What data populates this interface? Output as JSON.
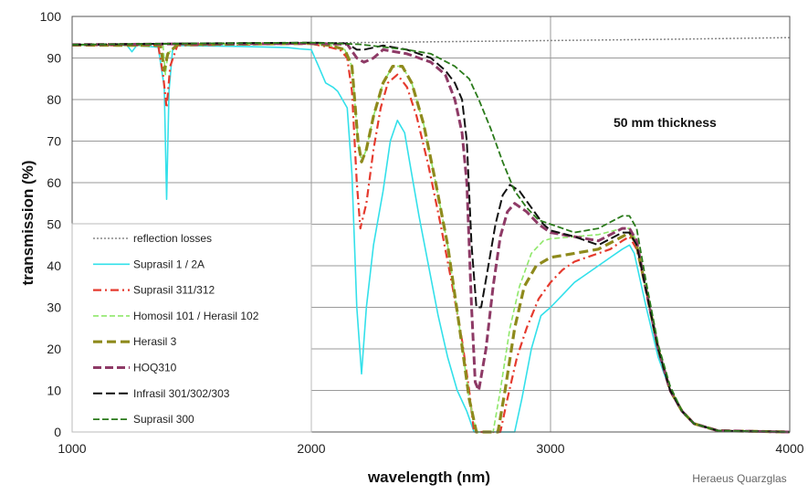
{
  "chart_data": {
    "type": "line",
    "title": "",
    "annotation": "50 mm thickness",
    "credit": "Heraeus Quarzglas",
    "xlabel": "wavelength (nm)",
    "ylabel": "transmission (%)",
    "xlim": [
      1000,
      4000
    ],
    "ylim": [
      0,
      100
    ],
    "xticks": [
      1000,
      2000,
      3000,
      4000
    ],
    "yticks": [
      0,
      10,
      20,
      30,
      40,
      50,
      60,
      70,
      80,
      90,
      100
    ],
    "legend_position": "lower-left",
    "series": [
      {
        "name": "reflection losses",
        "color": "#888888",
        "dash": "2,2",
        "width": 1.5,
        "points": [
          [
            1000,
            93.2
          ],
          [
            1500,
            93.4
          ],
          [
            2000,
            93.6
          ],
          [
            2500,
            93.9
          ],
          [
            3000,
            94.2
          ],
          [
            3500,
            94.5
          ],
          [
            4000,
            94.9
          ]
        ]
      },
      {
        "name": "Suprasil 1 / 2A",
        "color": "#33e0ea",
        "dash": "",
        "width": 1.6,
        "points": [
          [
            1000,
            93.1
          ],
          [
            1230,
            93
          ],
          [
            1250,
            91.5
          ],
          [
            1270,
            93
          ],
          [
            1360,
            92.6
          ],
          [
            1385,
            83
          ],
          [
            1395,
            56
          ],
          [
            1405,
            82
          ],
          [
            1420,
            92
          ],
          [
            1440,
            93
          ],
          [
            1700,
            92.8
          ],
          [
            1900,
            92.5
          ],
          [
            1950,
            92.2
          ],
          [
            2000,
            92
          ],
          [
            2030,
            88
          ],
          [
            2060,
            84
          ],
          [
            2090,
            83
          ],
          [
            2110,
            82
          ],
          [
            2150,
            78
          ],
          [
            2170,
            62
          ],
          [
            2190,
            30
          ],
          [
            2210,
            14
          ],
          [
            2230,
            30
          ],
          [
            2260,
            45
          ],
          [
            2300,
            58
          ],
          [
            2330,
            70
          ],
          [
            2360,
            75
          ],
          [
            2390,
            72
          ],
          [
            2420,
            62
          ],
          [
            2450,
            52
          ],
          [
            2490,
            40
          ],
          [
            2530,
            28
          ],
          [
            2570,
            18
          ],
          [
            2610,
            10
          ],
          [
            2650,
            5
          ],
          [
            2680,
            0
          ],
          [
            2850,
            0
          ],
          [
            2880,
            8
          ],
          [
            2920,
            20
          ],
          [
            2960,
            28
          ],
          [
            3000,
            30
          ],
          [
            3050,
            33
          ],
          [
            3100,
            36
          ],
          [
            3150,
            38
          ],
          [
            3200,
            40
          ],
          [
            3250,
            42
          ],
          [
            3300,
            44
          ],
          [
            3330,
            45
          ],
          [
            3350,
            43
          ],
          [
            3400,
            30
          ],
          [
            3450,
            18
          ],
          [
            3500,
            10
          ],
          [
            3550,
            5
          ],
          [
            3600,
            2
          ],
          [
            3700,
            0.3
          ],
          [
            4000,
            0
          ]
        ]
      },
      {
        "name": "Suprasil 311/312",
        "color": "#e53a2e",
        "dash": "9,4,2,4",
        "width": 2.2,
        "points": [
          [
            1000,
            93.1
          ],
          [
            1360,
            93
          ],
          [
            1380,
            86
          ],
          [
            1395,
            78
          ],
          [
            1410,
            88
          ],
          [
            1440,
            93
          ],
          [
            1900,
            93.4
          ],
          [
            2000,
            93.4
          ],
          [
            2060,
            92.8
          ],
          [
            2120,
            92
          ],
          [
            2150,
            90
          ],
          [
            2170,
            82
          ],
          [
            2190,
            60
          ],
          [
            2205,
            49
          ],
          [
            2230,
            55
          ],
          [
            2260,
            68
          ],
          [
            2290,
            78
          ],
          [
            2320,
            84
          ],
          [
            2360,
            86
          ],
          [
            2400,
            83
          ],
          [
            2440,
            76
          ],
          [
            2490,
            64
          ],
          [
            2540,
            50
          ],
          [
            2590,
            35
          ],
          [
            2630,
            22
          ],
          [
            2660,
            10
          ],
          [
            2680,
            0
          ],
          [
            2790,
            0
          ],
          [
            2820,
            8
          ],
          [
            2860,
            18
          ],
          [
            2900,
            25
          ],
          [
            2950,
            32
          ],
          [
            3000,
            36
          ],
          [
            3050,
            39
          ],
          [
            3100,
            41
          ],
          [
            3150,
            42
          ],
          [
            3200,
            43
          ],
          [
            3250,
            44
          ],
          [
            3300,
            46
          ],
          [
            3330,
            47
          ],
          [
            3360,
            44
          ],
          [
            3400,
            34
          ],
          [
            3450,
            20
          ],
          [
            3500,
            10
          ],
          [
            3550,
            5
          ],
          [
            3600,
            2
          ],
          [
            3700,
            0.3
          ],
          [
            4000,
            0
          ]
        ]
      },
      {
        "name": "Homosil 101 / Herasil 102",
        "color": "#8fe86a",
        "dash": "6,3",
        "width": 1.6,
        "points": [
          [
            1000,
            93.1
          ],
          [
            1380,
            93
          ],
          [
            1390,
            86
          ],
          [
            1400,
            91
          ],
          [
            1440,
            93.2
          ],
          [
            2000,
            93.5
          ],
          [
            2080,
            93
          ],
          [
            2140,
            92
          ],
          [
            2170,
            88
          ],
          [
            2195,
            70
          ],
          [
            2210,
            65
          ],
          [
            2230,
            68
          ],
          [
            2260,
            76
          ],
          [
            2300,
            84
          ],
          [
            2340,
            88
          ],
          [
            2380,
            88
          ],
          [
            2420,
            84
          ],
          [
            2470,
            74
          ],
          [
            2520,
            60
          ],
          [
            2570,
            45
          ],
          [
            2620,
            25
          ],
          [
            2660,
            8
          ],
          [
            2690,
            0
          ],
          [
            2760,
            0
          ],
          [
            2790,
            10
          ],
          [
            2830,
            25
          ],
          [
            2870,
            35
          ],
          [
            2920,
            43
          ],
          [
            2970,
            46
          ],
          [
            3000,
            46.5
          ],
          [
            3100,
            47
          ],
          [
            3200,
            47.5
          ],
          [
            3300,
            49
          ],
          [
            3330,
            49
          ],
          [
            3360,
            46
          ],
          [
            3400,
            34
          ],
          [
            3450,
            20
          ],
          [
            3500,
            10
          ],
          [
            3550,
            5
          ],
          [
            3600,
            2
          ],
          [
            3700,
            0.3
          ],
          [
            4000,
            0
          ]
        ]
      },
      {
        "name": "Herasil 3",
        "color": "#8e8a1c",
        "dash": "10,5",
        "width": 3.2,
        "points": [
          [
            1000,
            93.1
          ],
          [
            1370,
            93
          ],
          [
            1385,
            87
          ],
          [
            1400,
            91
          ],
          [
            1440,
            93.2
          ],
          [
            2000,
            93.5
          ],
          [
            2080,
            93
          ],
          [
            2140,
            92
          ],
          [
            2170,
            88
          ],
          [
            2195,
            70
          ],
          [
            2210,
            65
          ],
          [
            2230,
            68
          ],
          [
            2260,
            76
          ],
          [
            2300,
            84
          ],
          [
            2340,
            88
          ],
          [
            2380,
            88
          ],
          [
            2420,
            84
          ],
          [
            2470,
            74
          ],
          [
            2520,
            60
          ],
          [
            2570,
            45
          ],
          [
            2620,
            25
          ],
          [
            2660,
            8
          ],
          [
            2690,
            0
          ],
          [
            2780,
            0
          ],
          [
            2810,
            10
          ],
          [
            2850,
            25
          ],
          [
            2890,
            35
          ],
          [
            2940,
            40
          ],
          [
            3000,
            42
          ],
          [
            3100,
            43
          ],
          [
            3200,
            44
          ],
          [
            3300,
            47
          ],
          [
            3330,
            48
          ],
          [
            3360,
            45
          ],
          [
            3400,
            34
          ],
          [
            3450,
            20
          ],
          [
            3500,
            10
          ],
          [
            3550,
            5
          ],
          [
            3600,
            2
          ],
          [
            3700,
            0.3
          ],
          [
            4000,
            0
          ]
        ]
      },
      {
        "name": "HOQ310",
        "color": "#8e3a66",
        "dash": "9,4",
        "width": 3.0,
        "points": [
          [
            1000,
            93.2
          ],
          [
            1500,
            93.4
          ],
          [
            2000,
            93.5
          ],
          [
            2150,
            93.3
          ],
          [
            2190,
            90
          ],
          [
            2220,
            89
          ],
          [
            2260,
            90
          ],
          [
            2300,
            92
          ],
          [
            2400,
            91
          ],
          [
            2500,
            89
          ],
          [
            2560,
            86
          ],
          [
            2600,
            80
          ],
          [
            2630,
            72
          ],
          [
            2650,
            60
          ],
          [
            2670,
            30
          ],
          [
            2685,
            12
          ],
          [
            2700,
            10
          ],
          [
            2730,
            20
          ],
          [
            2760,
            35
          ],
          [
            2790,
            47
          ],
          [
            2820,
            53
          ],
          [
            2850,
            55
          ],
          [
            2900,
            53
          ],
          [
            2950,
            50
          ],
          [
            3000,
            48
          ],
          [
            3100,
            47
          ],
          [
            3200,
            46
          ],
          [
            3300,
            49
          ],
          [
            3330,
            49
          ],
          [
            3360,
            46
          ],
          [
            3400,
            34
          ],
          [
            3450,
            20
          ],
          [
            3500,
            10
          ],
          [
            3550,
            5
          ],
          [
            3600,
            2
          ],
          [
            3700,
            0.3
          ],
          [
            4000,
            0
          ]
        ]
      },
      {
        "name": "Infrasil 301/302/303",
        "color": "#111111",
        "dash": "10,4",
        "width": 2.0,
        "points": [
          [
            1000,
            93.2
          ],
          [
            1500,
            93.5
          ],
          [
            2000,
            93.7
          ],
          [
            2150,
            93.5
          ],
          [
            2190,
            92
          ],
          [
            2220,
            92
          ],
          [
            2300,
            93
          ],
          [
            2400,
            92
          ],
          [
            2500,
            90
          ],
          [
            2560,
            87
          ],
          [
            2600,
            84
          ],
          [
            2630,
            80
          ],
          [
            2650,
            70
          ],
          [
            2670,
            45
          ],
          [
            2690,
            30
          ],
          [
            2710,
            30
          ],
          [
            2740,
            40
          ],
          [
            2770,
            50
          ],
          [
            2800,
            57
          ],
          [
            2830,
            59.5
          ],
          [
            2870,
            58
          ],
          [
            2920,
            54
          ],
          [
            2970,
            50
          ],
          [
            3000,
            48.5
          ],
          [
            3100,
            47
          ],
          [
            3200,
            45
          ],
          [
            3300,
            48
          ],
          [
            3330,
            48
          ],
          [
            3360,
            45
          ],
          [
            3400,
            34
          ],
          [
            3450,
            20
          ],
          [
            3500,
            10
          ],
          [
            3550,
            5
          ],
          [
            3600,
            2
          ],
          [
            3700,
            0.3
          ],
          [
            4000,
            0
          ]
        ]
      },
      {
        "name": "Suprasil 300",
        "color": "#2a7a1a",
        "dash": "7,3",
        "width": 1.8,
        "points": [
          [
            1000,
            93.2
          ],
          [
            1500,
            93.5
          ],
          [
            2000,
            93.7
          ],
          [
            2200,
            93.3
          ],
          [
            2400,
            92
          ],
          [
            2500,
            91
          ],
          [
            2600,
            88
          ],
          [
            2660,
            85
          ],
          [
            2700,
            80
          ],
          [
            2750,
            73
          ],
          [
            2800,
            65
          ],
          [
            2850,
            58
          ],
          [
            2900,
            54
          ],
          [
            2950,
            51
          ],
          [
            3000,
            50
          ],
          [
            3100,
            48
          ],
          [
            3200,
            49
          ],
          [
            3300,
            52
          ],
          [
            3330,
            52
          ],
          [
            3360,
            49
          ],
          [
            3400,
            36
          ],
          [
            3450,
            21
          ],
          [
            3500,
            11
          ],
          [
            3550,
            5
          ],
          [
            3600,
            2
          ],
          [
            3700,
            0.3
          ],
          [
            4000,
            0
          ]
        ]
      }
    ]
  }
}
